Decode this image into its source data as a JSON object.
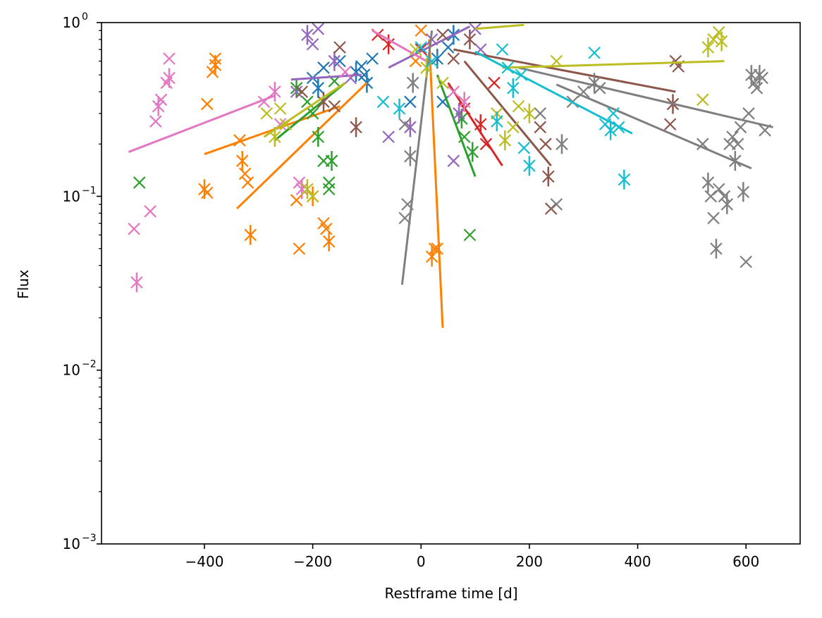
{
  "chart_data": {
    "type": "scatter",
    "title": "",
    "xlabel": "Restframe time [d]",
    "ylabel": "Flux",
    "xlim": [
      -590,
      700
    ],
    "ylim": [
      0.001,
      1
    ],
    "yscale": "log",
    "grid": false,
    "legend": "none",
    "marker": "x",
    "xticks": [
      {
        "value": -400,
        "label": "−400"
      },
      {
        "value": -200,
        "label": "−200"
      },
      {
        "value": 0,
        "label": "0"
      },
      {
        "value": 200,
        "label": "200"
      },
      {
        "value": 400,
        "label": "400"
      },
      {
        "value": 600,
        "label": "600"
      }
    ],
    "yticks": [
      {
        "value": 0.001,
        "base": "10",
        "exp": "−3"
      },
      {
        "value": 0.01,
        "base": "10",
        "exp": "−2"
      },
      {
        "value": 0.1,
        "base": "10",
        "exp": "−1"
      },
      {
        "value": 1,
        "base": "10",
        "exp": "0"
      }
    ],
    "series": [
      {
        "color": "#1f77b4",
        "points": [
          [
            -200,
            0.48
          ],
          [
            -190,
            0.42
          ],
          [
            -180,
            0.55
          ],
          [
            -150,
            0.6
          ],
          [
            -120,
            0.52
          ],
          [
            -110,
            0.56
          ],
          [
            -105,
            0.5
          ],
          [
            -100,
            0.45
          ],
          [
            -90,
            0.62
          ],
          [
            -20,
            0.35
          ],
          [
            30,
            0.62
          ],
          [
            40,
            0.35
          ],
          [
            50,
            0.72
          ],
          [
            60,
            0.85
          ]
        ],
        "fit": [
          [
            -110,
            0.45
          ],
          [
            20,
            0.7
          ]
        ]
      },
      {
        "color": "#ff7f00",
        "points": [
          [
            -380,
            0.62
          ],
          [
            -380,
            0.57
          ],
          [
            -385,
            0.52
          ],
          [
            -395,
            0.34
          ],
          [
            -400,
            0.11
          ],
          [
            -395,
            0.105
          ],
          [
            -335,
            0.21
          ],
          [
            -330,
            0.16
          ],
          [
            -325,
            0.135
          ],
          [
            -320,
            0.12
          ],
          [
            -315,
            0.06
          ],
          [
            -230,
            0.095
          ],
          [
            -225,
            0.05
          ],
          [
            -200,
            0.1
          ],
          [
            -180,
            0.07
          ],
          [
            -175,
            0.065
          ],
          [
            -170,
            0.055
          ],
          [
            -10,
            0.6
          ],
          [
            0,
            0.9
          ],
          [
            20,
            0.045
          ],
          [
            25,
            0.05
          ],
          [
            30,
            0.05
          ]
        ],
        "fit": [
          [
            -400,
            0.175
          ],
          [
            -200,
            0.28
          ],
          [
            -100,
            0.45
          ],
          [
            40,
            0.0175
          ]
        ],
        "fits": [
          [
            [
              -400,
              0.175
            ],
            [
              -150,
              0.33
            ]
          ],
          [
            [
              -340,
              0.085
            ],
            [
              -100,
              0.45
            ]
          ],
          [
            [
              15,
              0.8
            ],
            [
              40,
              0.0175
            ]
          ]
        ]
      },
      {
        "color": "#2ca02c",
        "points": [
          [
            -520,
            0.12
          ],
          [
            -230,
            0.42
          ],
          [
            -210,
            0.35
          ],
          [
            -200,
            0.3
          ],
          [
            -190,
            0.22
          ],
          [
            -180,
            0.16
          ],
          [
            -170,
            0.12
          ],
          [
            -165,
            0.16
          ],
          [
            -170,
            0.11
          ],
          [
            -160,
            0.46
          ],
          [
            75,
            0.28
          ],
          [
            80,
            0.22
          ],
          [
            90,
            0.06
          ],
          [
            95,
            0.18
          ]
        ],
        "fits": [
          [
            [
              -270,
              0.21
            ],
            [
              -140,
              0.45
            ]
          ],
          [
            [
              30,
              0.5
            ],
            [
              100,
              0.13
            ]
          ]
        ]
      },
      {
        "color": "#d62728",
        "points": [
          [
            -80,
            0.85
          ],
          [
            -60,
            0.75
          ],
          [
            0,
            0.7
          ],
          [
            80,
            0.32
          ],
          [
            110,
            0.26
          ],
          [
            120,
            0.2
          ],
          [
            135,
            0.45
          ]
        ],
        "fits": [
          [
            [
              50,
              0.45
            ],
            [
              150,
              0.15
            ]
          ]
        ]
      },
      {
        "color": "#9467bd",
        "points": [
          [
            -230,
            0.4
          ],
          [
            -210,
            0.85
          ],
          [
            -200,
            0.75
          ],
          [
            -190,
            0.92
          ],
          [
            -160,
            0.6
          ],
          [
            -130,
            0.48
          ],
          [
            -60,
            0.22
          ],
          [
            -20,
            0.25
          ],
          [
            20,
            0.8
          ],
          [
            60,
            0.16
          ],
          [
            70,
            0.3
          ],
          [
            100,
            0.92
          ],
          [
            110,
            0.7
          ]
        ],
        "fits": [
          [
            [
              -240,
              0.47
            ],
            [
              -110,
              0.5
            ]
          ],
          [
            [
              -60,
              0.55
            ],
            [
              90,
              0.95
            ]
          ]
        ]
      },
      {
        "color": "#8c564b",
        "points": [
          [
            -220,
            0.4
          ],
          [
            -180,
            0.35
          ],
          [
            -160,
            0.33
          ],
          [
            -150,
            0.72
          ],
          [
            -120,
            0.25
          ],
          [
            40,
            0.85
          ],
          [
            60,
            0.62
          ],
          [
            90,
            0.8
          ],
          [
            220,
            0.25
          ],
          [
            230,
            0.2
          ],
          [
            235,
            0.13
          ],
          [
            240,
            0.085
          ],
          [
            460,
            0.26
          ],
          [
            465,
            0.34
          ],
          [
            470,
            0.6
          ],
          [
            475,
            0.56
          ]
        ],
        "fits": [
          [
            [
              80,
              0.6
            ],
            [
              240,
              0.15
            ]
          ],
          [
            [
              60,
              0.7
            ],
            [
              470,
              0.4
            ]
          ]
        ]
      },
      {
        "color": "#e377c2",
        "points": [
          [
            -530,
            0.065
          ],
          [
            -525,
            0.032
          ],
          [
            -500,
            0.082
          ],
          [
            -490,
            0.27
          ],
          [
            -485,
            0.33
          ],
          [
            -480,
            0.36
          ],
          [
            -470,
            0.45
          ],
          [
            -465,
            0.48
          ],
          [
            -465,
            0.62
          ],
          [
            -290,
            0.35
          ],
          [
            -270,
            0.4
          ],
          [
            -260,
            0.26
          ],
          [
            -225,
            0.12
          ],
          [
            -220,
            0.11
          ],
          [
            -140,
            0.52
          ],
          [
            60,
            0.4
          ],
          [
            80,
            0.35
          ]
        ],
        "fits": [
          [
            [
              -540,
              0.18
            ],
            [
              -270,
              0.38
            ]
          ],
          [
            [
              -90,
              0.9
            ],
            [
              10,
              0.6
            ]
          ]
        ]
      },
      {
        "color": "#7f7f7f",
        "points": [
          [
            -30,
            0.26
          ],
          [
            -20,
            0.17
          ],
          [
            -25,
            0.09
          ],
          [
            -30,
            0.075
          ],
          [
            -15,
            0.45
          ],
          [
            220,
            0.3
          ],
          [
            250,
            0.09
          ],
          [
            260,
            0.2
          ],
          [
            280,
            0.35
          ],
          [
            300,
            0.4
          ],
          [
            320,
            0.45
          ],
          [
            330,
            0.42
          ],
          [
            520,
            0.2
          ],
          [
            530,
            0.12
          ],
          [
            535,
            0.1
          ],
          [
            540,
            0.075
          ],
          [
            545,
            0.05
          ],
          [
            550,
            0.11
          ],
          [
            560,
            0.1
          ],
          [
            565,
            0.09
          ],
          [
            570,
            0.2
          ],
          [
            575,
            0.22
          ],
          [
            580,
            0.16
          ],
          [
            585,
            0.2
          ],
          [
            590,
            0.25
          ],
          [
            595,
            0.106
          ],
          [
            600,
            0.042
          ],
          [
            605,
            0.3
          ],
          [
            610,
            0.5
          ],
          [
            615,
            0.45
          ],
          [
            620,
            0.42
          ],
          [
            625,
            0.5
          ],
          [
            630,
            0.48
          ],
          [
            635,
            0.24
          ]
        ],
        "fits": [
          [
            [
              -35,
              0.031
            ],
            [
              20,
              0.9
            ]
          ],
          [
            [
              180,
              0.55
            ],
            [
              650,
              0.25
            ]
          ],
          [
            [
              250,
              0.44
            ],
            [
              610,
              0.145
            ]
          ]
        ]
      },
      {
        "color": "#bcbd22",
        "points": [
          [
            -285,
            0.3
          ],
          [
            -270,
            0.22
          ],
          [
            -260,
            0.32
          ],
          [
            -250,
            0.26
          ],
          [
            -210,
            0.11
          ],
          [
            -200,
            0.1
          ],
          [
            -10,
            0.7
          ],
          [
            10,
            0.55
          ],
          [
            40,
            0.45
          ],
          [
            140,
            0.3
          ],
          [
            155,
            0.21
          ],
          [
            170,
            0.25
          ],
          [
            180,
            0.33
          ],
          [
            200,
            0.3
          ],
          [
            250,
            0.6
          ],
          [
            520,
            0.36
          ],
          [
            530,
            0.72
          ],
          [
            540,
            0.8
          ],
          [
            550,
            0.88
          ],
          [
            555,
            0.78
          ]
        ],
        "fits": [
          [
            [
              -290,
              0.22
            ],
            [
              -140,
              0.45
            ]
          ],
          [
            [
              150,
              0.55
            ],
            [
              560,
              0.6
            ]
          ],
          [
            [
              100,
              0.92
            ],
            [
              190,
              0.97
            ]
          ]
        ]
      },
      {
        "color": "#17becf",
        "points": [
          [
            -70,
            0.35
          ],
          [
            -40,
            0.32
          ],
          [
            0,
            0.72
          ],
          [
            20,
            0.6
          ],
          [
            140,
            0.27
          ],
          [
            150,
            0.7
          ],
          [
            160,
            0.55
          ],
          [
            170,
            0.42
          ],
          [
            185,
            0.5
          ],
          [
            190,
            0.19
          ],
          [
            200,
            0.15
          ],
          [
            320,
            0.67
          ],
          [
            340,
            0.26
          ],
          [
            350,
            0.24
          ],
          [
            355,
            0.3
          ],
          [
            365,
            0.25
          ],
          [
            375,
            0.125
          ]
        ],
        "fits": [
          [
            [
              100,
              0.68
            ],
            [
              390,
              0.23
            ]
          ]
        ]
      }
    ]
  }
}
